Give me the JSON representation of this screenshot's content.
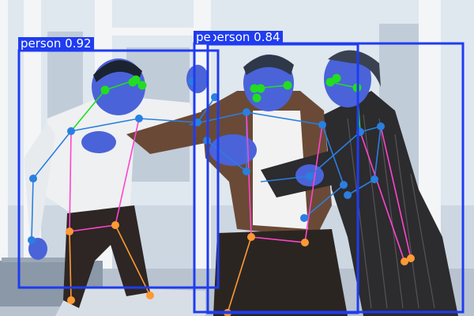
{
  "colors": {
    "box": "#1f3cf0",
    "head_kp": "#22dd22",
    "arm_kp": "#2a7fe0",
    "leg_kp": "#ff9933",
    "torso_line": "#ff44cc",
    "arm_line": "#2a7fe0",
    "head_line": "#22dd22",
    "leg_line": "#ff9933"
  },
  "detections": [
    {
      "label": "person 0.92",
      "class": "person",
      "score": 0.92
    },
    {
      "label": "person 0.84",
      "class": "person",
      "score": 0.84
    },
    {
      "label": "pe",
      "class": "person",
      "score": null
    }
  ]
}
